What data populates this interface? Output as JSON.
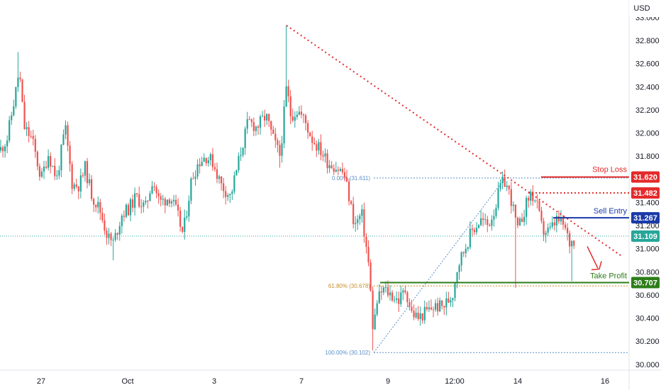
{
  "chart_data": {
    "type": "candlestick",
    "currency": "USD",
    "y_ticks": [
      "33.000",
      "32.800",
      "32.600",
      "32.400",
      "32.200",
      "32.000",
      "31.800",
      "31.600",
      "31.400",
      "31.200",
      "31.000",
      "30.800",
      "30.600",
      "30.400",
      "30.200",
      "30.000"
    ],
    "ylim": [
      29.95,
      33.15
    ],
    "x_ticks": [
      "27",
      "Oct",
      "3",
      "7",
      "9",
      "12:00",
      "14",
      "16"
    ],
    "levels": {
      "stop_loss": {
        "label": "Stop Loss",
        "value": "31.620",
        "num": 31.62,
        "color": "#e32b2b"
      },
      "resistance": {
        "value": "31.482",
        "num": 31.482,
        "color": "#e32b2b"
      },
      "sell_entry": {
        "label": "Sell Entry",
        "value": "31.267",
        "num": 31.267,
        "color": "#1a3aa8"
      },
      "current": {
        "value": "31.109",
        "num": 31.109,
        "color": "#26a69a"
      },
      "take_profit": {
        "label": "Take Profit",
        "value": "30.707",
        "num": 30.707,
        "color": "#2e7d1a"
      }
    },
    "fibonacci": [
      {
        "label": "0.00% (31.611)",
        "value": 31.611,
        "color": "#5b8fc7"
      },
      {
        "label": "61.80% (30.678)",
        "value": 30.678,
        "color": "#c7902c"
      },
      {
        "label": "100.00% (30.102)",
        "value": 30.102,
        "color": "#5b8fc7"
      }
    ],
    "up_color": "#26a69a",
    "down_color": "#ef5350",
    "trendline": {
      "from": 32.93,
      "to": 30.93,
      "color": "#e32b2b",
      "style": "dotted"
    }
  }
}
